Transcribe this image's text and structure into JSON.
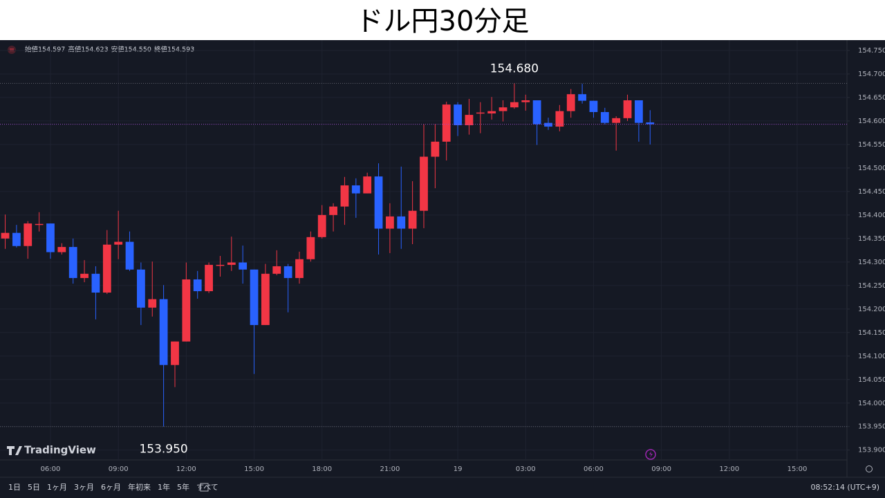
{
  "chart_data": {
    "type": "candlestick",
    "title": "ドル円30分足",
    "x": [
      4,
      4.5,
      5,
      5.5,
      6,
      6.5,
      7,
      7.5,
      8,
      8.5,
      9,
      9.5,
      10,
      10.5,
      11,
      11.5,
      12,
      12.5,
      13,
      13.5,
      14,
      14.5,
      15,
      15.5,
      16,
      16.5,
      17,
      17.5,
      18,
      18.5,
      19,
      19.5,
      20,
      20.5,
      21,
      21.5,
      22,
      22.5,
      23,
      23.5,
      24,
      24.5,
      25,
      25.5,
      26,
      26.5,
      27,
      27.5,
      28,
      28.5,
      29,
      29.5,
      30,
      30.5,
      31,
      31.5,
      32,
      32.5
    ],
    "open": [
      154.35,
      154.362,
      154.334,
      154.381,
      154.382,
      154.321,
      154.332,
      154.266,
      154.275,
      154.235,
      154.337,
      154.343,
      154.284,
      154.203,
      154.221,
      154.081,
      154.131,
      154.263,
      154.238,
      154.294,
      154.294,
      154.299,
      154.284,
      154.166,
      154.275,
      154.291,
      154.266,
      154.306,
      154.353,
      154.4,
      154.418,
      154.463,
      154.446,
      154.482,
      154.371,
      154.397,
      154.371,
      154.409,
      154.524,
      154.556,
      154.635,
      154.591,
      154.618,
      154.616,
      154.621,
      154.629,
      154.64,
      154.644,
      154.596,
      154.588,
      154.621,
      154.657,
      154.643,
      154.619,
      154.596,
      154.606,
      154.644,
      154.597
    ],
    "high": [
      154.401,
      154.379,
      154.387,
      154.406,
      154.382,
      154.34,
      154.35,
      154.304,
      154.291,
      154.368,
      154.409,
      154.365,
      154.299,
      154.301,
      154.251,
      154.131,
      154.299,
      154.281,
      154.299,
      154.313,
      154.354,
      154.335,
      154.284,
      154.296,
      154.325,
      154.296,
      154.322,
      154.365,
      154.421,
      154.425,
      154.481,
      154.478,
      154.49,
      154.51,
      154.425,
      154.503,
      154.472,
      154.593,
      154.593,
      154.641,
      154.64,
      154.647,
      154.64,
      154.651,
      154.644,
      154.68,
      154.656,
      154.644,
      154.607,
      154.634,
      154.668,
      154.679,
      154.643,
      154.628,
      154.61,
      154.656,
      154.644,
      154.623
    ],
    "low": [
      154.328,
      154.331,
      154.307,
      154.365,
      154.307,
      154.316,
      154.254,
      154.257,
      154.178,
      154.232,
      154.306,
      154.281,
      154.166,
      154.184,
      153.95,
      154.034,
      154.131,
      154.222,
      154.234,
      154.269,
      154.281,
      154.254,
      154.062,
      154.166,
      154.272,
      154.193,
      154.254,
      154.301,
      154.35,
      154.365,
      154.379,
      154.394,
      154.446,
      154.316,
      154.319,
      154.328,
      154.338,
      154.372,
      154.457,
      154.516,
      154.568,
      154.571,
      154.574,
      154.603,
      154.599,
      154.626,
      154.622,
      154.549,
      154.581,
      154.578,
      154.607,
      154.637,
      154.607,
      154.593,
      154.537,
      154.6,
      154.556,
      154.55
    ],
    "close": [
      154.362,
      154.334,
      154.382,
      154.381,
      154.321,
      154.332,
      154.266,
      154.275,
      154.235,
      154.337,
      154.343,
      154.284,
      154.203,
      154.221,
      154.081,
      154.131,
      154.263,
      154.238,
      154.294,
      154.294,
      154.299,
      154.284,
      154.166,
      154.275,
      154.291,
      154.266,
      154.306,
      154.353,
      154.4,
      154.418,
      154.463,
      154.446,
      154.482,
      154.371,
      154.397,
      154.371,
      154.409,
      154.524,
      154.556,
      154.635,
      154.591,
      154.613,
      154.618,
      154.621,
      154.629,
      154.64,
      154.644,
      154.593,
      154.588,
      154.621,
      154.657,
      154.643,
      154.619,
      154.596,
      154.606,
      154.644,
      154.596,
      154.593
    ],
    "up_color": "#f23645",
    "down_color": "#2962ff",
    "xlim": [
      3.77,
      41.2
    ],
    "ylim": [
      153.879,
      154.772
    ],
    "xticks": [
      {
        "value": 6,
        "label": "06:00"
      },
      {
        "value": 9,
        "label": "09:00"
      },
      {
        "value": 12,
        "label": "12:00"
      },
      {
        "value": 15,
        "label": "15:00"
      },
      {
        "value": 18,
        "label": "18:00"
      },
      {
        "value": 21,
        "label": "21:00"
      },
      {
        "value": 24,
        "label": "19"
      },
      {
        "value": 27,
        "label": "03:00"
      },
      {
        "value": 30,
        "label": "06:00"
      },
      {
        "value": 33,
        "label": "09:00"
      },
      {
        "value": 36,
        "label": "12:00"
      },
      {
        "value": 39,
        "label": "15:00"
      }
    ],
    "yticks": [
      {
        "value": 153.9,
        "label": "153.900"
      },
      {
        "value": 153.95,
        "label": "153.950"
      },
      {
        "value": 154,
        "label": "154.000"
      },
      {
        "value": 154.05,
        "label": "154.050"
      },
      {
        "value": 154.1,
        "label": "154.100"
      },
      {
        "value": 154.15,
        "label": "154.150"
      },
      {
        "value": 154.2,
        "label": "154.200"
      },
      {
        "value": 154.25,
        "label": "154.250"
      },
      {
        "value": 154.3,
        "label": "154.300"
      },
      {
        "value": 154.35,
        "label": "154.350"
      },
      {
        "value": 154.4,
        "label": "154.400"
      },
      {
        "value": 154.45,
        "label": "154.450"
      },
      {
        "value": 154.5,
        "label": "154.500"
      },
      {
        "value": 154.55,
        "label": "154.550"
      },
      {
        "value": 154.6,
        "label": "154.600"
      },
      {
        "value": 154.65,
        "label": "154.650"
      },
      {
        "value": 154.7,
        "label": "154.700"
      },
      {
        "value": 154.75,
        "label": "154.750"
      }
    ],
    "grid": true,
    "annotations": [
      {
        "kind": "high",
        "value": 154.68,
        "label": "154.680"
      },
      {
        "kind": "low",
        "value": 153.95,
        "label": "153.950"
      }
    ],
    "ohlc_legend": [
      {
        "name": "始値",
        "label": "154.597"
      },
      {
        "name": "高値",
        "label": "154.623"
      },
      {
        "name": "安値",
        "label": "154.550"
      },
      {
        "name": "終値",
        "label": "154.593"
      }
    ]
  },
  "logo": "TradingView",
  "toolbar": {
    "ranges": [
      "1日",
      "5日",
      "1ヶ月",
      "3ヶ月",
      "6ヶ月",
      "年初来",
      "1年",
      "5年",
      "すべて"
    ],
    "clock": "08:52:14 (UTC+9)"
  }
}
